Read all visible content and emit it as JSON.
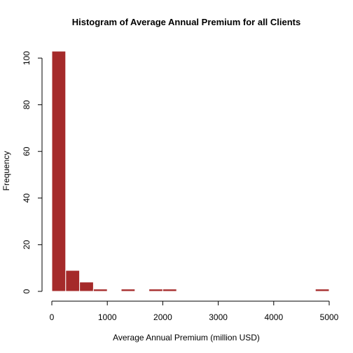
{
  "chart_data": {
    "type": "bar",
    "title": "Histogram of Average Annual Premium for all Clients",
    "xlabel": "Average Annual Premium (million USD)",
    "ylabel": "Frequency",
    "xlim": [
      0,
      5000
    ],
    "ylim": [
      0,
      100
    ],
    "x_ticks": [
      0,
      1000,
      2000,
      3000,
      4000,
      5000
    ],
    "y_ticks": [
      0,
      20,
      40,
      60,
      80,
      100
    ],
    "bin_width": 250,
    "bins": [
      {
        "start": 0,
        "end": 250,
        "count": 103
      },
      {
        "start": 250,
        "end": 500,
        "count": 9
      },
      {
        "start": 500,
        "end": 750,
        "count": 4
      },
      {
        "start": 750,
        "end": 1000,
        "count": 1
      },
      {
        "start": 1000,
        "end": 1250,
        "count": 0
      },
      {
        "start": 1250,
        "end": 1500,
        "count": 1
      },
      {
        "start": 1500,
        "end": 1750,
        "count": 0
      },
      {
        "start": 1750,
        "end": 2000,
        "count": 1
      },
      {
        "start": 2000,
        "end": 2250,
        "count": 1
      },
      {
        "start": 2250,
        "end": 2500,
        "count": 0
      },
      {
        "start": 2500,
        "end": 2750,
        "count": 0
      },
      {
        "start": 2750,
        "end": 3000,
        "count": 0
      },
      {
        "start": 3000,
        "end": 3250,
        "count": 0
      },
      {
        "start": 3250,
        "end": 3500,
        "count": 0
      },
      {
        "start": 3500,
        "end": 3750,
        "count": 0
      },
      {
        "start": 3750,
        "end": 4000,
        "count": 0
      },
      {
        "start": 4000,
        "end": 4250,
        "count": 0
      },
      {
        "start": 4250,
        "end": 4500,
        "count": 0
      },
      {
        "start": 4500,
        "end": 4750,
        "count": 0
      },
      {
        "start": 4750,
        "end": 5000,
        "count": 1
      }
    ],
    "bar_color": "#a52a2a",
    "bar_border_color": "#ffffff",
    "grid": false
  }
}
